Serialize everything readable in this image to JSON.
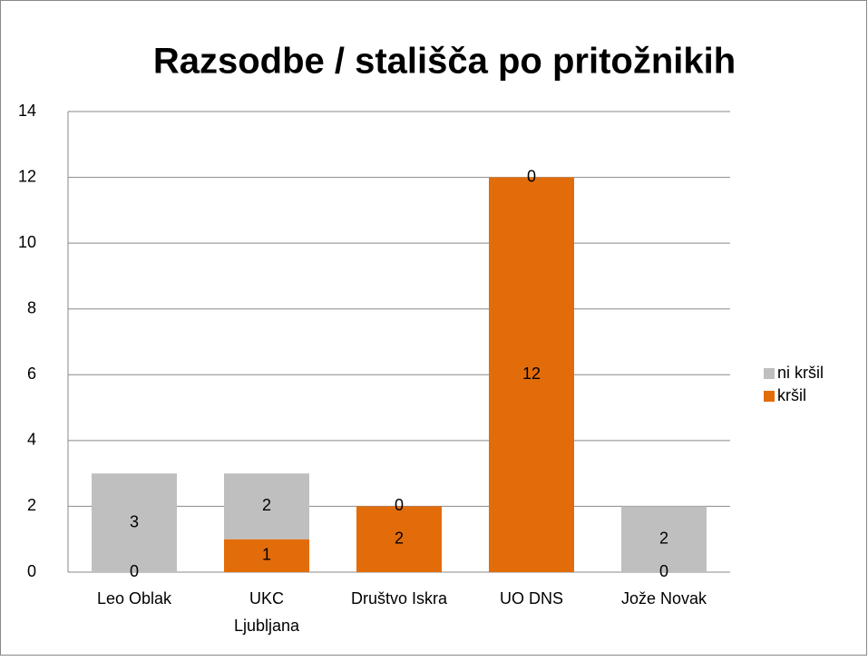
{
  "chart_data": {
    "type": "bar",
    "stacked": true,
    "title": "Razsodbe / stališča po pritožnikih",
    "categories": [
      "Leo Oblak",
      "UKC Ljubljana",
      "Društvo Iskra",
      "UO DNS",
      "Jože Novak"
    ],
    "series": [
      {
        "name": "kršil",
        "color": "#e36c0a",
        "values": [
          0,
          1,
          2,
          12,
          0
        ]
      },
      {
        "name": "ni kršil",
        "color": "#bfbfbf",
        "values": [
          3,
          2,
          0,
          0,
          2
        ]
      }
    ],
    "ylim": [
      0,
      14
    ],
    "yticks": [
      0,
      2,
      4,
      6,
      8,
      10,
      12,
      14
    ],
    "grid": true,
    "data_labels": true,
    "legend": "right"
  }
}
